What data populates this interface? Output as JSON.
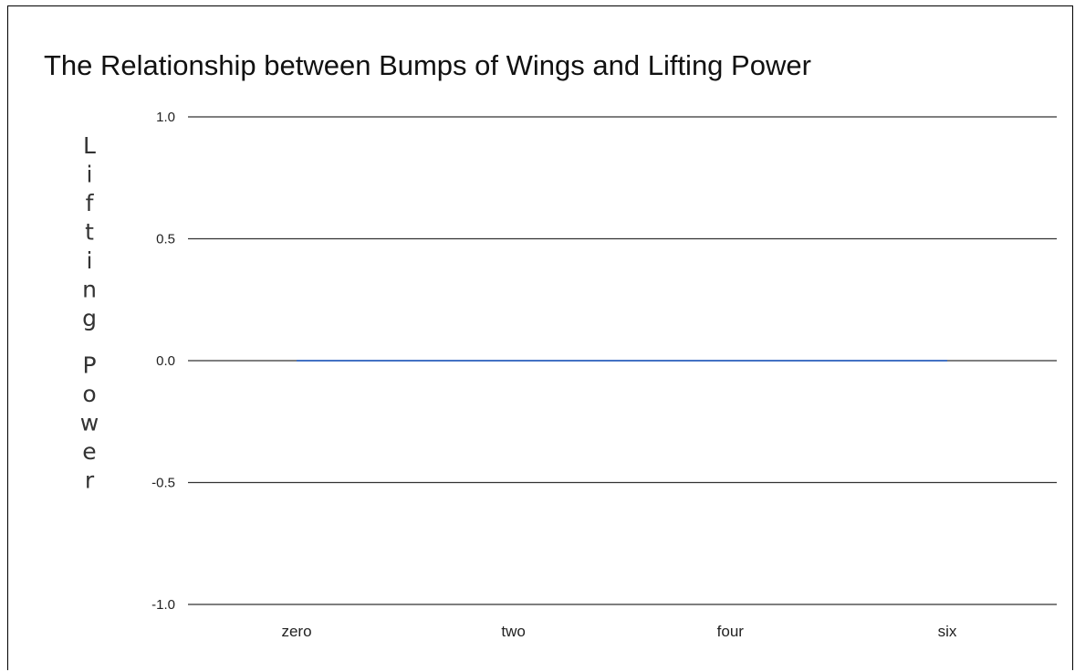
{
  "chart_data": {
    "type": "line",
    "title": "The Relationship between Bumps of Wings and Lifting Power",
    "xlabel": "",
    "ylabel": "Lifting Power",
    "categories": [
      "zero",
      "two",
      "four",
      "six"
    ],
    "series": [
      {
        "values": [
          0,
          0,
          0,
          0
        ],
        "color": "#4472c4"
      }
    ],
    "ylim": [
      -1.0,
      1.0
    ],
    "yticks": [
      "1.0",
      "0.5",
      "0.0",
      "-0.5",
      "-1.0"
    ],
    "grid": "horizontal",
    "legend": "none"
  }
}
